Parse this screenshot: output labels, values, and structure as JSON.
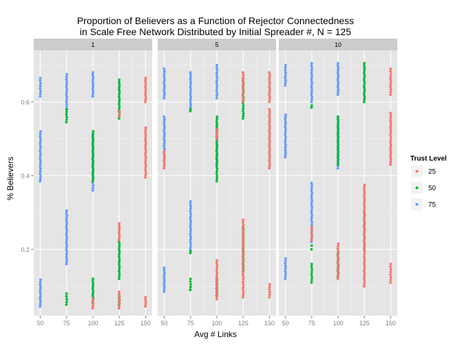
{
  "chart_data": {
    "type": "scatter",
    "title": "Proportion of Believers as a Function of Rejector Connectedness",
    "subtitle": "in Scale Free Network Distributed by Initial Spreader #, N = 125",
    "xlabel": "Avg # Links",
    "ylabel": "% Believers",
    "x_ticks": [
      50,
      75,
      100,
      125,
      150
    ],
    "y_ticks": [
      0.2,
      0.4,
      0.6
    ],
    "y_tick_labels": [
      "0.2",
      "0.4",
      "0.6"
    ],
    "ylim": [
      0.02,
      0.74
    ],
    "grid": true,
    "legend_title": "Trust Level",
    "legend_position": "right",
    "series": [
      {
        "name": "25",
        "color": "#F8766D"
      },
      {
        "name": "50",
        "color": "#00BA38"
      },
      {
        "name": "75",
        "color": "#619CFF"
      }
    ],
    "facets": [
      {
        "label": "1",
        "clusters": {
          "50": {
            "75": [
              [
                0.615,
                0.665
              ],
              [
                0.385,
                0.52
              ],
              [
                0.045,
                0.118
              ]
            ]
          },
          "75": {
            "75": [
              [
                0.58,
                0.675
              ],
              [
                0.16,
                0.305
              ]
            ],
            "50": [
              [
                0.545,
                0.58
              ],
              [
                0.05,
                0.08
              ]
            ]
          },
          "100": {
            "75": [
              [
                0.36,
                0.51
              ],
              [
                0.615,
                0.68
              ]
            ],
            "50": [
              [
                0.385,
                0.52
              ],
              [
                0.055,
                0.12
              ]
            ],
            "25": [
              [
                0.04,
                0.065
              ]
            ]
          },
          "125": {
            "50": [
              [
                0.555,
                0.66
              ],
              [
                0.12,
                0.22
              ],
              [
                0.05,
                0.075
              ]
            ],
            "25": [
              [
                0.56,
                0.575
              ],
              [
                0.225,
                0.27
              ],
              [
                0.04,
                0.085
              ]
            ]
          },
          "150": {
            "25": [
              [
                0.395,
                0.53
              ],
              [
                0.6,
                0.665
              ],
              [
                0.045,
                0.07
              ]
            ]
          }
        }
      },
      {
        "label": "5",
        "clusters": {
          "50": {
            "75": [
              [
                0.44,
                0.56
              ],
              [
                0.61,
                0.69
              ],
              [
                0.085,
                0.15
              ]
            ],
            "25": [
              [
                0.42,
                0.465
              ]
            ]
          },
          "75": {
            "75": [
              [
                0.58,
                0.68
              ],
              [
                0.2,
                0.33
              ]
            ],
            "50": [
              [
                0.575,
                0.58
              ],
              [
                0.09,
                0.12
              ],
              [
                0.19,
                0.195
              ]
            ]
          },
          "100": {
            "75": [
              [
                0.43,
                0.54
              ],
              [
                0.61,
                0.7
              ]
            ],
            "50": [
              [
                0.385,
                0.56
              ],
              [
                0.075,
                0.12
              ]
            ],
            "25": [
              [
                0.065,
                0.17
              ],
              [
                0.5,
                0.525
              ]
            ]
          },
          "125": {
            "50": [
              [
                0.555,
                0.665
              ],
              [
                0.14,
                0.26
              ]
            ],
            "25": [
              [
                0.6,
                0.68
              ],
              [
                0.07,
                0.28
              ]
            ]
          },
          "150": {
            "25": [
              [
                0.42,
                0.58
              ],
              [
                0.6,
                0.68
              ],
              [
                0.07,
                0.105
              ]
            ]
          }
        }
      },
      {
        "label": "10",
        "clusters": {
          "50": {
            "75": [
              [
                0.645,
                0.7
              ],
              [
                0.45,
                0.565
              ],
              [
                0.12,
                0.175
              ]
            ]
          },
          "75": {
            "75": [
              [
                0.22,
                0.38
              ],
              [
                0.6,
                0.705
              ]
            ],
            "50": [
              [
                0.585,
                0.59
              ],
              [
                0.11,
                0.16
              ],
              [
                0.2,
                0.21
              ]
            ],
            "25": [
              [
                0.225,
                0.26
              ]
            ]
          },
          "100": {
            "75": [
              [
                0.42,
                0.56
              ],
              [
                0.62,
                0.705
              ]
            ],
            "50": [
              [
                0.43,
                0.56
              ],
              [
                0.125,
                0.19
              ]
            ],
            "25": [
              [
                0.12,
                0.215
              ]
            ]
          },
          "125": {
            "50": [
              [
                0.6,
                0.705
              ],
              [
                0.2,
                0.3
              ]
            ],
            "25": [
              [
                0.1,
                0.375
              ]
            ]
          },
          "150": {
            "25": [
              [
                0.43,
                0.57
              ],
              [
                0.62,
                0.69
              ],
              [
                0.11,
                0.16
              ]
            ]
          }
        }
      }
    ]
  }
}
